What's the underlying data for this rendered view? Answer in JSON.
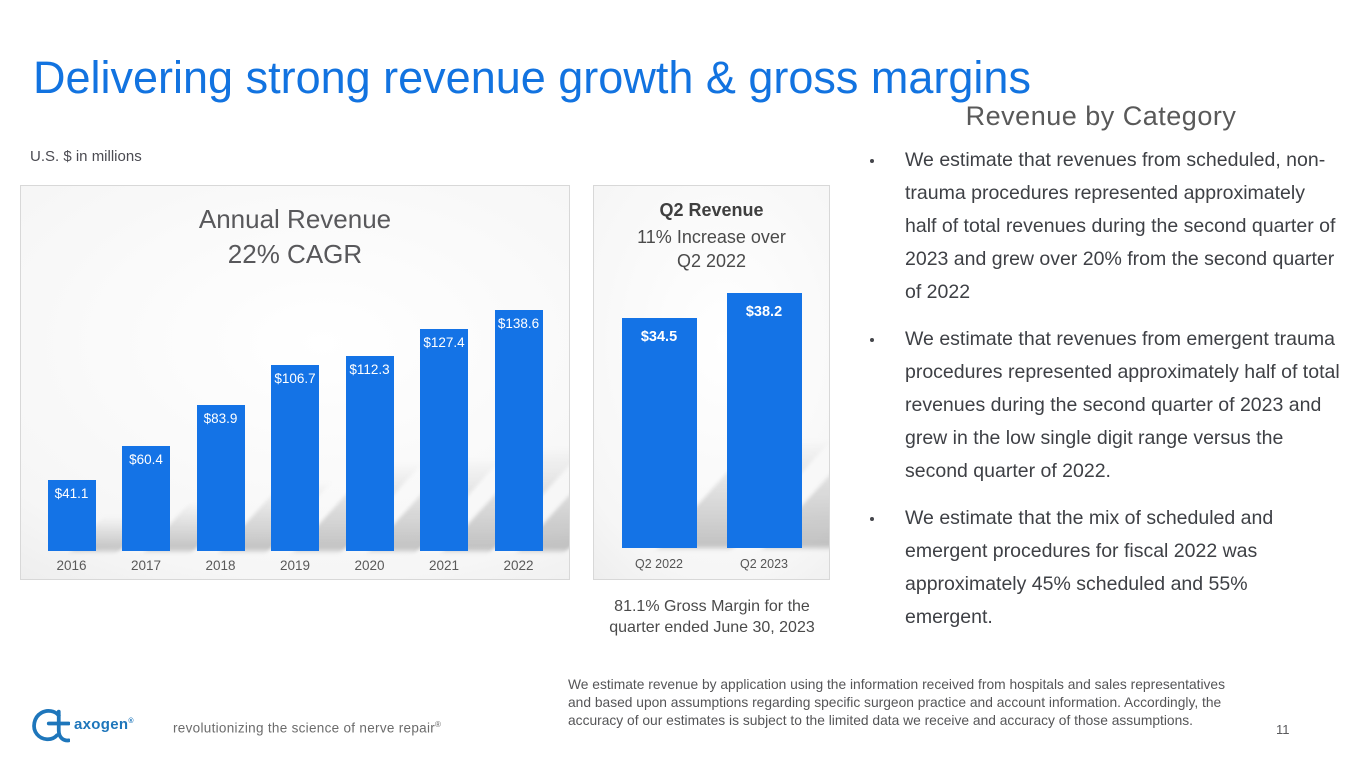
{
  "slide": {
    "title": "Delivering strong revenue growth & gross margins",
    "units_label": "U.S. $ in millions",
    "page_number": "11"
  },
  "chart_data": [
    {
      "type": "bar",
      "title": "Annual Revenue",
      "subtitle": "22% CAGR",
      "categories": [
        "2016",
        "2017",
        "2018",
        "2019",
        "2020",
        "2021",
        "2022"
      ],
      "values": [
        41.1,
        60.4,
        83.9,
        106.7,
        112.3,
        127.4,
        138.6
      ],
      "value_labels": [
        "$41.1",
        "$60.4",
        "$83.9",
        "$106.7",
        "$112.3",
        "$127.4",
        "$138.6"
      ],
      "ylabel": "U.S. $ in millions",
      "ylim": [
        0,
        140
      ],
      "grid": false,
      "legend": "none",
      "bar_color": "#1473e6"
    },
    {
      "type": "bar",
      "title": "Q2 Revenue",
      "subtitle": "11% Increase over Q2 2022",
      "categories": [
        "Q2 2022",
        "Q2 2023"
      ],
      "values": [
        34.5,
        38.2
      ],
      "value_labels": [
        "$34.5",
        "$38.2"
      ],
      "ylabel": "U.S. $ in millions",
      "ylim": [
        0,
        40
      ],
      "grid": false,
      "legend": "none",
      "bar_color": "#1473e6"
    }
  ],
  "q2_note": {
    "lines": [
      "81.1% Gross Margin for the",
      "quarter ended June 30, 2023"
    ]
  },
  "category_panel": {
    "heading": "Revenue by Category",
    "bullets": [
      "We estimate that revenues from scheduled, non-trauma procedures represented approximately half of total revenues during the second quarter of 2023 and grew over 20% from the second quarter of 2022",
      "We estimate that revenues from emergent trauma procedures represented approximately half of total revenues during the second quarter of 2023 and grew in the low single digit range versus the second quarter of 2022.",
      "We estimate that the mix of scheduled and emergent procedures for fiscal 2022 was approximately 45% scheduled and 55% emergent."
    ]
  },
  "footnote": {
    "lines": [
      "We estimate revenue by application using the information received from hospitals and sales representatives",
      "and based upon assumptions regarding specific surgeon practice and account information. Accordingly, the",
      "accuracy of our estimates is subject to the limited data we receive and accuracy of those assumptions."
    ]
  },
  "footer": {
    "logo_text": "axogen",
    "logo_reg": "®",
    "tagline": "revolutionizing the science of nerve repair",
    "tagline_reg": "®"
  },
  "colors": {
    "title_blue": "#1273e0",
    "bar_blue": "#1473e6",
    "logo_blue": "#1e76bb",
    "heading_gray": "#595959",
    "body_gray": "#3e4045"
  }
}
